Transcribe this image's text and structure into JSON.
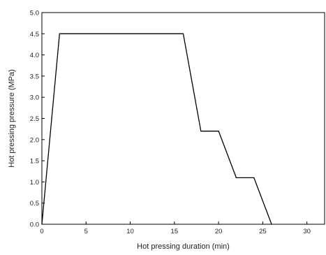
{
  "chart_data": {
    "type": "line",
    "title": "",
    "xlabel": "Hot pressing duration (min)",
    "ylabel": "Hot pressing pressure (MPa)",
    "xlim": [
      0,
      32
    ],
    "ylim": [
      0,
      5.0
    ],
    "xticks": [
      0,
      5,
      10,
      15,
      20,
      25,
      30
    ],
    "yticks": [
      0.0,
      0.5,
      1.0,
      1.5,
      2.0,
      2.5,
      3.0,
      3.5,
      4.0,
      4.5,
      5.0
    ],
    "xtick_labels": [
      "0",
      "5",
      "10",
      "15",
      "20",
      "25",
      "30"
    ],
    "ytick_labels": [
      "0.0",
      "0.5",
      "1.0",
      "1.5",
      "2.0",
      "2.5",
      "3.0",
      "3.5",
      "4.0",
      "4.5",
      "5.0"
    ],
    "grid": false,
    "legend": "none",
    "series": [
      {
        "x": [
          0,
          2,
          16,
          18,
          20,
          22,
          24,
          26
        ],
        "y": [
          0,
          4.5,
          4.5,
          2.2,
          2.2,
          1.1,
          1.1,
          0
        ],
        "color": "#000000"
      }
    ]
  }
}
